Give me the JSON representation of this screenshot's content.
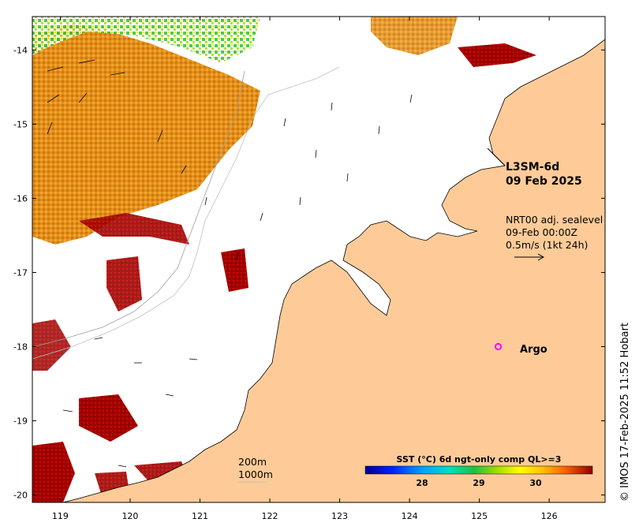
{
  "map": {
    "x_ticks": [
      "119",
      "120",
      "121",
      "122",
      "123",
      "124",
      "125",
      "126"
    ],
    "y_ticks": [
      "-14",
      "-15",
      "-16",
      "-17",
      "-18",
      "-19",
      "-20"
    ],
    "lon_range": [
      118.6,
      126.8
    ],
    "lat_range": [
      -20.1,
      -13.55
    ]
  },
  "title": {
    "product": "L3SM-6d",
    "date": "09 Feb 2025"
  },
  "current_info": {
    "line1": "NRT00 adj. sealevel",
    "line2": "09-Feb 00:00Z",
    "line3": "0.5m/s (1kt 24h)"
  },
  "argo": {
    "label": "Argo",
    "lon": 125.27,
    "lat": -18.0,
    "color": "#ff00ff"
  },
  "depth_contours": {
    "label1": "200m",
    "label2": "1000m"
  },
  "colorbar": {
    "label": "SST (°C) 6d ngt-only comp QL>=3",
    "ticks": [
      "28",
      "29",
      "30"
    ],
    "range": [
      27.0,
      31.0
    ],
    "tick_values": [
      28,
      29,
      30
    ]
  },
  "credit": "© IMOS 17-Feb-2025 11:52 Hobart",
  "colors": {
    "land": "#fecb98",
    "sst_warm": "#a50000",
    "sst_orange": "#e08000",
    "sst_yellow": "#f0e000",
    "sst_green": "#30c030"
  }
}
